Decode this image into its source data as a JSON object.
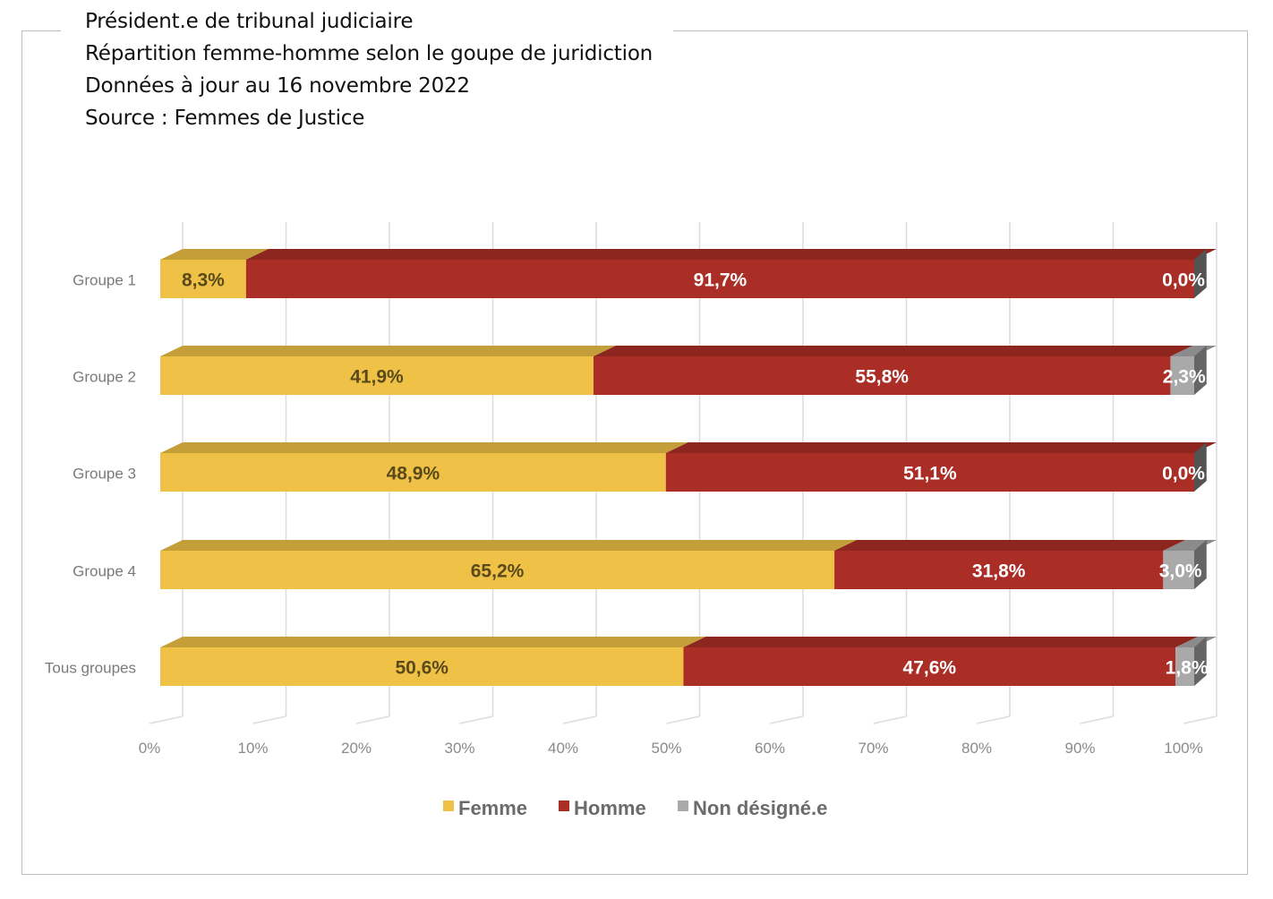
{
  "header": {
    "line1": "Président.e de tribunal judiciaire",
    "line2": "Répartition femme-homme selon le goupe de juridiction",
    "line3": "Données à jour au 16 novembre 2022",
    "line4": "Source : Femmes de Justice"
  },
  "chart_data": {
    "type": "bar",
    "orientation": "horizontal",
    "stacked": true,
    "three_d": true,
    "categories": [
      "Groupe 1",
      "Groupe 2",
      "Groupe 3",
      "Groupe 4",
      "Tous groupes"
    ],
    "series": [
      {
        "name": "Femme",
        "color": "#efc146",
        "label_color": "#5a4a1a",
        "values": [
          8.3,
          41.9,
          48.9,
          65.2,
          50.6
        ],
        "labels": [
          "8,3%",
          "41,9%",
          "48,9%",
          "65,2%",
          "50,6%"
        ]
      },
      {
        "name": "Homme",
        "color": "#ab2e26",
        "label_color": "#ffffff",
        "values": [
          91.7,
          55.8,
          51.1,
          31.8,
          47.6
        ],
        "labels": [
          "91,7%",
          "55,8%",
          "51,1%",
          "31,8%",
          "47,6%"
        ]
      },
      {
        "name": "Non désigné.e",
        "color": "#a9a9a9",
        "label_color": "#ffffff",
        "values": [
          0.0,
          2.3,
          0.0,
          3.0,
          1.8
        ],
        "labels": [
          "0,0%",
          "2,3%",
          "0,0%",
          "3,0%",
          "1,8%"
        ]
      }
    ],
    "x_ticks": [
      "0%",
      "10%",
      "20%",
      "30%",
      "40%",
      "50%",
      "60%",
      "70%",
      "80%",
      "90%",
      "100%"
    ],
    "xlim": [
      0,
      100
    ],
    "grid": true,
    "legend_position": "bottom"
  }
}
